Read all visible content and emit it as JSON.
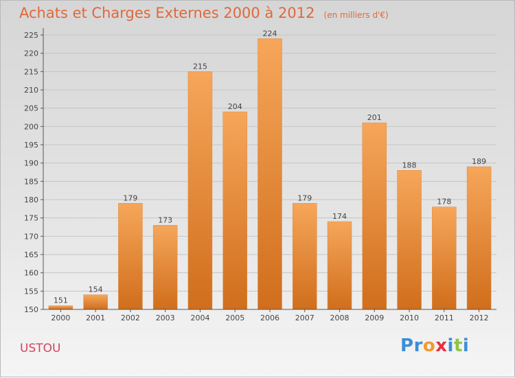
{
  "chart_data": {
    "type": "bar",
    "title": "Achats et Charges Externes 2000 à 2012",
    "subtitle": "(en milliers d'€)",
    "categories": [
      "2000",
      "2001",
      "2002",
      "2003",
      "2004",
      "2005",
      "2006",
      "2007",
      "2008",
      "2009",
      "2010",
      "2011",
      "2012"
    ],
    "values": [
      151,
      154,
      179,
      173,
      215,
      204,
      224,
      179,
      174,
      201,
      188,
      178,
      189
    ],
    "yticks": [
      150,
      155,
      160,
      165,
      170,
      175,
      180,
      185,
      190,
      195,
      200,
      205,
      210,
      215,
      220,
      225
    ],
    "ylim": [
      150,
      227
    ],
    "grid": true,
    "bar_color_top": "#f6a65a",
    "bar_color_bottom": "#d06e1c"
  },
  "commune": "USTOU",
  "logo": {
    "letters": [
      "P",
      "r",
      "o",
      "x",
      "i",
      "t",
      "i"
    ],
    "colors": [
      "#3c8ed8",
      "#3c8ed8",
      "#f29a2e",
      "#e5313d",
      "#3c8ed8",
      "#8cc63f",
      "#3c8ed8"
    ]
  }
}
